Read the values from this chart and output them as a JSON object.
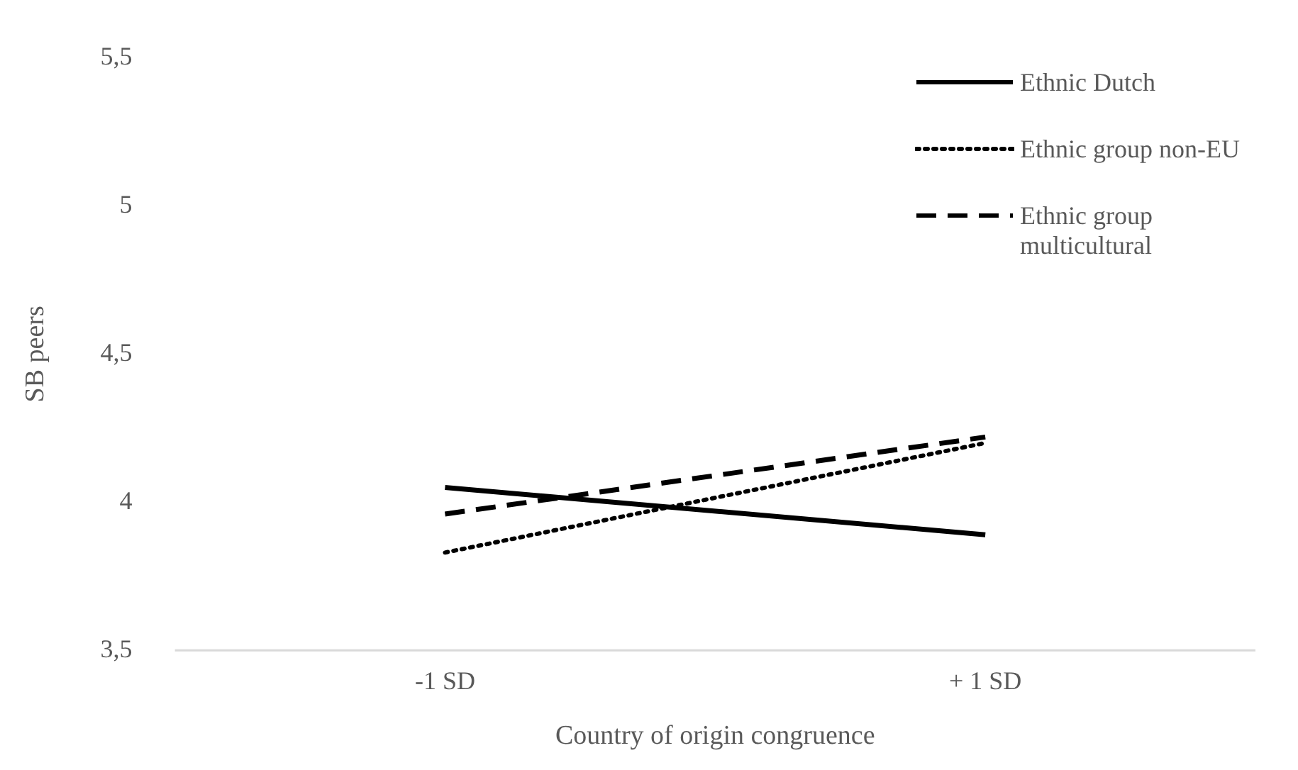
{
  "chart_data": {
    "type": "line",
    "xlabel": "Country of origin congruence",
    "ylabel": "SB peers",
    "categories": [
      "-1 SD",
      "+ 1 SD"
    ],
    "series": [
      {
        "name": "Ethnic Dutch",
        "color": "#000000",
        "values": [
          4.05,
          3.89
        ],
        "line_style": "solid"
      },
      {
        "name": "Ethnic group non-EU",
        "color": "#000000",
        "values": [
          3.83,
          4.2
        ],
        "line_style": "dotted"
      },
      {
        "name": "Ethnic group multicultural",
        "color": "#000000",
        "values": [
          3.96,
          4.22
        ],
        "line_style": "dashed"
      }
    ],
    "ylim": [
      3.5,
      5.5
    ],
    "yticks": [
      {
        "value": 3.5,
        "label": "3,5"
      },
      {
        "value": 4,
        "label": "4"
      },
      {
        "value": 4.5,
        "label": "4,5"
      },
      {
        "value": 5,
        "label": "5"
      },
      {
        "value": 5.5,
        "label": "5,5"
      }
    ],
    "grid": false,
    "legend": "top right",
    "marker": "none"
  }
}
